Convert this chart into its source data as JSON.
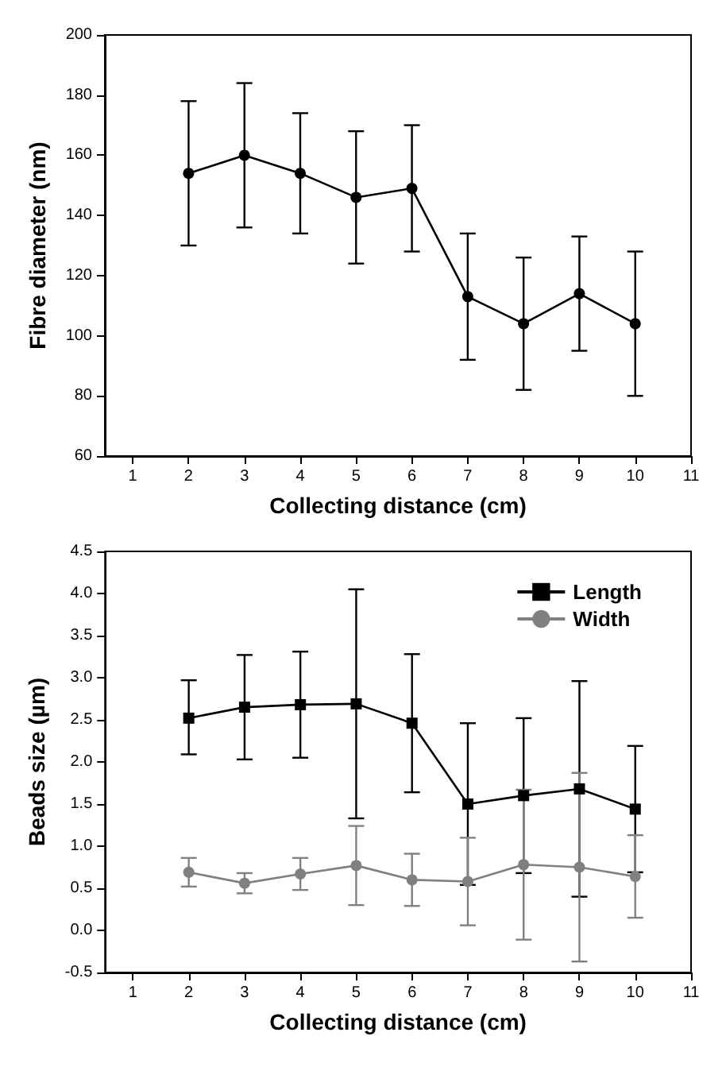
{
  "chart_data": [
    {
      "type": "line",
      "xlabel": "Collecting distance (cm)",
      "ylabel": "Fibre diameter (nm)",
      "xlim": [
        0.5,
        11
      ],
      "xticks": [
        1,
        2,
        3,
        4,
        5,
        6,
        7,
        8,
        9,
        10,
        11
      ],
      "ylim": [
        60,
        200
      ],
      "yticks": [
        60,
        80,
        100,
        120,
        140,
        160,
        180,
        200
      ],
      "grid": false,
      "legend": false,
      "marker": "circle",
      "line_style": "solid",
      "series": [
        {
          "color": "#000000",
          "x": [
            2,
            3,
            4,
            5,
            6,
            7,
            8,
            9,
            10
          ],
          "values": [
            154,
            160,
            154,
            146,
            149,
            113,
            104,
            114,
            104
          ],
          "errors": [
            [
              130,
              178
            ],
            [
              136,
              184
            ],
            [
              134,
              174
            ],
            [
              124,
              168
            ],
            [
              128,
              170
            ],
            [
              92,
              134
            ],
            [
              82,
              126
            ],
            [
              95,
              133
            ],
            [
              80,
              128
            ]
          ]
        }
      ]
    },
    {
      "type": "line",
      "xlabel": "Collecting distance (cm)",
      "ylabel": "Beads size (µm)",
      "xlim": [
        0.5,
        11
      ],
      "xticks": [
        1,
        2,
        3,
        4,
        5,
        6,
        7,
        8,
        9,
        10,
        11
      ],
      "ylim": [
        -0.5,
        4.5
      ],
      "yticks": [
        {
          "value": -0.5,
          "label": "-0.5"
        },
        {
          "value": 0,
          "label": "0.0"
        },
        {
          "value": 0.5,
          "label": "0.5"
        },
        {
          "value": 1,
          "label": "1.0"
        },
        {
          "value": 1.5,
          "label": "1.5"
        },
        {
          "value": 2,
          "label": "2.0"
        },
        {
          "value": 2.5,
          "label": "2.5"
        },
        {
          "value": 3,
          "label": "3.0"
        },
        {
          "value": 3.5,
          "label": "3.5"
        },
        {
          "value": 4,
          "label": "4.0"
        },
        {
          "value": 4.5,
          "label": "4.5"
        }
      ],
      "grid": false,
      "legend": "top right",
      "line_style": "solid",
      "series": [
        {
          "name": "Length",
          "color": "#000000",
          "marker": "square",
          "x": [
            2,
            3,
            4,
            5,
            6,
            7,
            8,
            9,
            10
          ],
          "values": [
            2.52,
            2.65,
            2.68,
            2.69,
            2.46,
            1.5,
            1.6,
            1.68,
            1.44
          ],
          "errors": [
            [
              2.09,
              2.97
            ],
            [
              2.03,
              3.27
            ],
            [
              2.05,
              3.31
            ],
            [
              1.33,
              4.05
            ],
            [
              1.64,
              3.28
            ],
            [
              0.54,
              2.46
            ],
            [
              0.68,
              2.52
            ],
            [
              0.4,
              2.96
            ],
            [
              0.69,
              2.19
            ]
          ]
        },
        {
          "name": "Width",
          "color": "#808080",
          "marker": "circle",
          "x": [
            2,
            3,
            4,
            5,
            6,
            7,
            8,
            9,
            10
          ],
          "values": [
            0.69,
            0.56,
            0.67,
            0.77,
            0.6,
            0.58,
            0.78,
            0.75,
            0.64
          ],
          "errors": [
            [
              0.52,
              0.86
            ],
            [
              0.44,
              0.68
            ],
            [
              0.48,
              0.86
            ],
            [
              0.3,
              1.24
            ],
            [
              0.29,
              0.91
            ],
            [
              0.06,
              1.1
            ],
            [
              -0.11,
              1.67
            ],
            [
              -0.37,
              1.87
            ],
            [
              0.15,
              1.13
            ]
          ]
        }
      ]
    }
  ]
}
